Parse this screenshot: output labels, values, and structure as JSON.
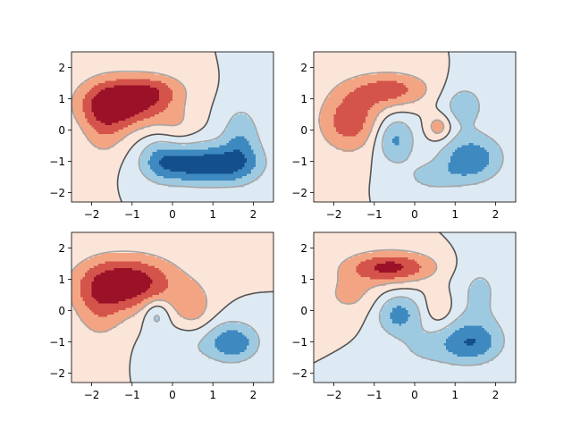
{
  "chart_data": [
    {
      "type": "contour",
      "panel": "top-left",
      "xlim": [
        -2.5,
        2.5
      ],
      "ylim": [
        -2.3,
        2.5
      ],
      "xticks": [
        -2,
        -1,
        0,
        1,
        2
      ],
      "yticks": [
        -2,
        -1,
        0,
        1,
        2
      ],
      "xtick_labels": [
        "−2",
        "−1",
        "0",
        "1",
        "2"
      ],
      "ytick_labels": [
        "−2",
        "−1",
        "0",
        "1",
        "2"
      ],
      "colormap": "RdBu_r",
      "levels": [
        -3,
        -2,
        -1,
        0,
        1,
        2,
        3
      ],
      "level_colors": [
        "#144f8d",
        "#3d89c0",
        "#9ecae1",
        "#ddeaf3",
        "#fbe4d8",
        "#f3a583",
        "#d4544b",
        "#9b1128"
      ],
      "line_levels": [
        {
          "value": -1,
          "style": "dashed",
          "color": "#a6a6a6"
        },
        {
          "value": 0,
          "style": "dashdot",
          "color": "#555555"
        },
        {
          "value": 1,
          "style": "dashed",
          "color": "#a6a6a6"
        }
      ],
      "field": {
        "blobs": [
          {
            "x": -1.2,
            "y": 0.9,
            "a": 3.8,
            "sx": 0.75,
            "sy": 0.55
          },
          {
            "x": -1.7,
            "y": 0.2,
            "a": 1.6,
            "sx": 0.4,
            "sy": 0.8
          },
          {
            "x": -0.4,
            "y": 1.3,
            "a": 1.4,
            "sx": 0.55,
            "sy": 0.35
          },
          {
            "x": 0.8,
            "y": -1.1,
            "a": -3.8,
            "sx": 0.85,
            "sy": 0.45
          },
          {
            "x": 1.7,
            "y": -0.3,
            "a": -1.8,
            "sx": 0.35,
            "sy": 0.8
          },
          {
            "x": -0.3,
            "y": -0.9,
            "a": -1.5,
            "sx": 0.35,
            "sy": 0.5
          },
          {
            "x": 0.1,
            "y": 0.2,
            "a": 0.8,
            "sx": 0.35,
            "sy": 0.45
          }
        ],
        "rotation": 0
      }
    },
    {
      "type": "contour",
      "panel": "top-right",
      "xlim": [
        -2.5,
        2.5
      ],
      "ylim": [
        -2.3,
        2.5
      ],
      "xticks": [
        -2,
        -1,
        0,
        1,
        2
      ],
      "yticks": [
        -2,
        -1,
        0,
        1,
        2
      ],
      "xtick_labels": [
        "−2",
        "−1",
        "0",
        "1",
        "2"
      ],
      "ytick_labels": [
        "−2",
        "−1",
        "0",
        "1",
        "2"
      ],
      "colormap": "RdBu_r",
      "levels": [
        -3,
        -2,
        -1,
        0,
        1,
        2,
        3
      ],
      "level_colors": [
        "#144f8d",
        "#3d89c0",
        "#9ecae1",
        "#ddeaf3",
        "#fbe4d8",
        "#f3a583",
        "#d4544b",
        "#9b1128"
      ],
      "line_levels": [
        {
          "value": -1,
          "style": "dashed",
          "color": "#a6a6a6"
        },
        {
          "value": 0,
          "style": "dashdot",
          "color": "#555555"
        },
        {
          "value": 1,
          "style": "dashed",
          "color": "#a6a6a6"
        }
      ],
      "field": {
        "blobs": [
          {
            "x": -1.6,
            "y": 0.3,
            "a": 2.6,
            "sx": 0.55,
            "sy": 0.7
          },
          {
            "x": -0.6,
            "y": 1.3,
            "a": 2.4,
            "sx": 0.7,
            "sy": 0.4
          },
          {
            "x": 0.6,
            "y": 0.1,
            "a": 1.8,
            "sx": 0.22,
            "sy": 0.3
          },
          {
            "x": -0.5,
            "y": -0.3,
            "a": -2.3,
            "sx": 0.35,
            "sy": 0.55
          },
          {
            "x": 1.4,
            "y": -0.9,
            "a": -2.8,
            "sx": 0.55,
            "sy": 0.55
          },
          {
            "x": 1.2,
            "y": 0.8,
            "a": -1.6,
            "sx": 0.4,
            "sy": 0.5
          },
          {
            "x": 0.4,
            "y": -1.5,
            "a": -1.2,
            "sx": 0.5,
            "sy": 0.35
          }
        ],
        "rotation": 0
      }
    },
    {
      "type": "contour",
      "panel": "bottom-left",
      "xlim": [
        -2.5,
        2.5
      ],
      "ylim": [
        -2.3,
        2.5
      ],
      "xticks": [
        -2,
        -1,
        0,
        1,
        2
      ],
      "yticks": [
        -2,
        -1,
        0,
        1,
        2
      ],
      "xtick_labels": [
        "−2",
        "−1",
        "0",
        "1",
        "2"
      ],
      "ytick_labels": [
        "−2",
        "−1",
        "0",
        "1",
        "2"
      ],
      "colormap": "RdBu_r",
      "levels": [
        -3,
        -2,
        -1,
        0,
        1,
        2,
        3
      ],
      "level_colors": [
        "#144f8d",
        "#3d89c0",
        "#9ecae1",
        "#ddeaf3",
        "#fbe4d8",
        "#f3a583",
        "#d4544b",
        "#9b1128"
      ],
      "line_levels": [
        {
          "value": -1,
          "style": "dashed",
          "color": "#a6a6a6"
        },
        {
          "value": 0,
          "style": "dashdot",
          "color": "#555555"
        },
        {
          "value": 1,
          "style": "dashed",
          "color": "#a6a6a6"
        }
      ],
      "field": {
        "blobs": [
          {
            "x": -1.1,
            "y": 0.9,
            "a": 3.8,
            "sx": 0.85,
            "sy": 0.6
          },
          {
            "x": -1.8,
            "y": 0.1,
            "a": 1.5,
            "sx": 0.45,
            "sy": 0.8
          },
          {
            "x": 0.5,
            "y": 0.1,
            "a": 1.5,
            "sx": 0.35,
            "sy": 0.55
          },
          {
            "x": 1.5,
            "y": -1.0,
            "a": -2.8,
            "sx": 0.45,
            "sy": 0.45
          },
          {
            "x": -0.4,
            "y": -0.1,
            "a": -1.6,
            "sx": 0.22,
            "sy": 0.35
          },
          {
            "x": 0.3,
            "y": -1.1,
            "a": -0.8,
            "sx": 0.6,
            "sy": 0.5
          }
        ],
        "rotation": 0
      }
    },
    {
      "type": "contour",
      "panel": "bottom-right",
      "xlim": [
        -2.5,
        2.5
      ],
      "ylim": [
        -2.3,
        2.5
      ],
      "xticks": [
        -2,
        -1,
        0,
        1,
        2
      ],
      "yticks": [
        -2,
        -1,
        0,
        1,
        2
      ],
      "xtick_labels": [
        "−2",
        "−1",
        "0",
        "1",
        "2"
      ],
      "ytick_labels": [
        "−2",
        "−1",
        "0",
        "1",
        "2"
      ],
      "colormap": "RdBu_r",
      "levels": [
        -3,
        -2,
        -1,
        0,
        1,
        2,
        3
      ],
      "level_colors": [
        "#144f8d",
        "#3d89c0",
        "#9ecae1",
        "#ddeaf3",
        "#fbe4d8",
        "#f3a583",
        "#d4544b",
        "#9b1128"
      ],
      "line_levels": [
        {
          "value": -1,
          "style": "dashed",
          "color": "#a6a6a6"
        },
        {
          "value": 0,
          "style": "dashdot",
          "color": "#555555"
        },
        {
          "value": 1,
          "style": "dashed",
          "color": "#a6a6a6"
        }
      ],
      "field": {
        "blobs": [
          {
            "x": -0.6,
            "y": 1.4,
            "a": 3.3,
            "sx": 0.75,
            "sy": 0.35
          },
          {
            "x": -1.6,
            "y": 0.5,
            "a": 1.2,
            "sx": 0.55,
            "sy": 0.5
          },
          {
            "x": 0.6,
            "y": 0.1,
            "a": 1.0,
            "sx": 0.25,
            "sy": 0.45
          },
          {
            "x": -0.4,
            "y": -0.1,
            "a": -2.4,
            "sx": 0.4,
            "sy": 0.45
          },
          {
            "x": 1.4,
            "y": -1.0,
            "a": -2.8,
            "sx": 0.55,
            "sy": 0.5
          },
          {
            "x": 1.6,
            "y": 0.6,
            "a": -1.2,
            "sx": 0.45,
            "sy": 0.8
          },
          {
            "x": 0.2,
            "y": -1.2,
            "a": -1.0,
            "sx": 0.6,
            "sy": 0.5
          }
        ],
        "rotation": 0
      }
    }
  ]
}
